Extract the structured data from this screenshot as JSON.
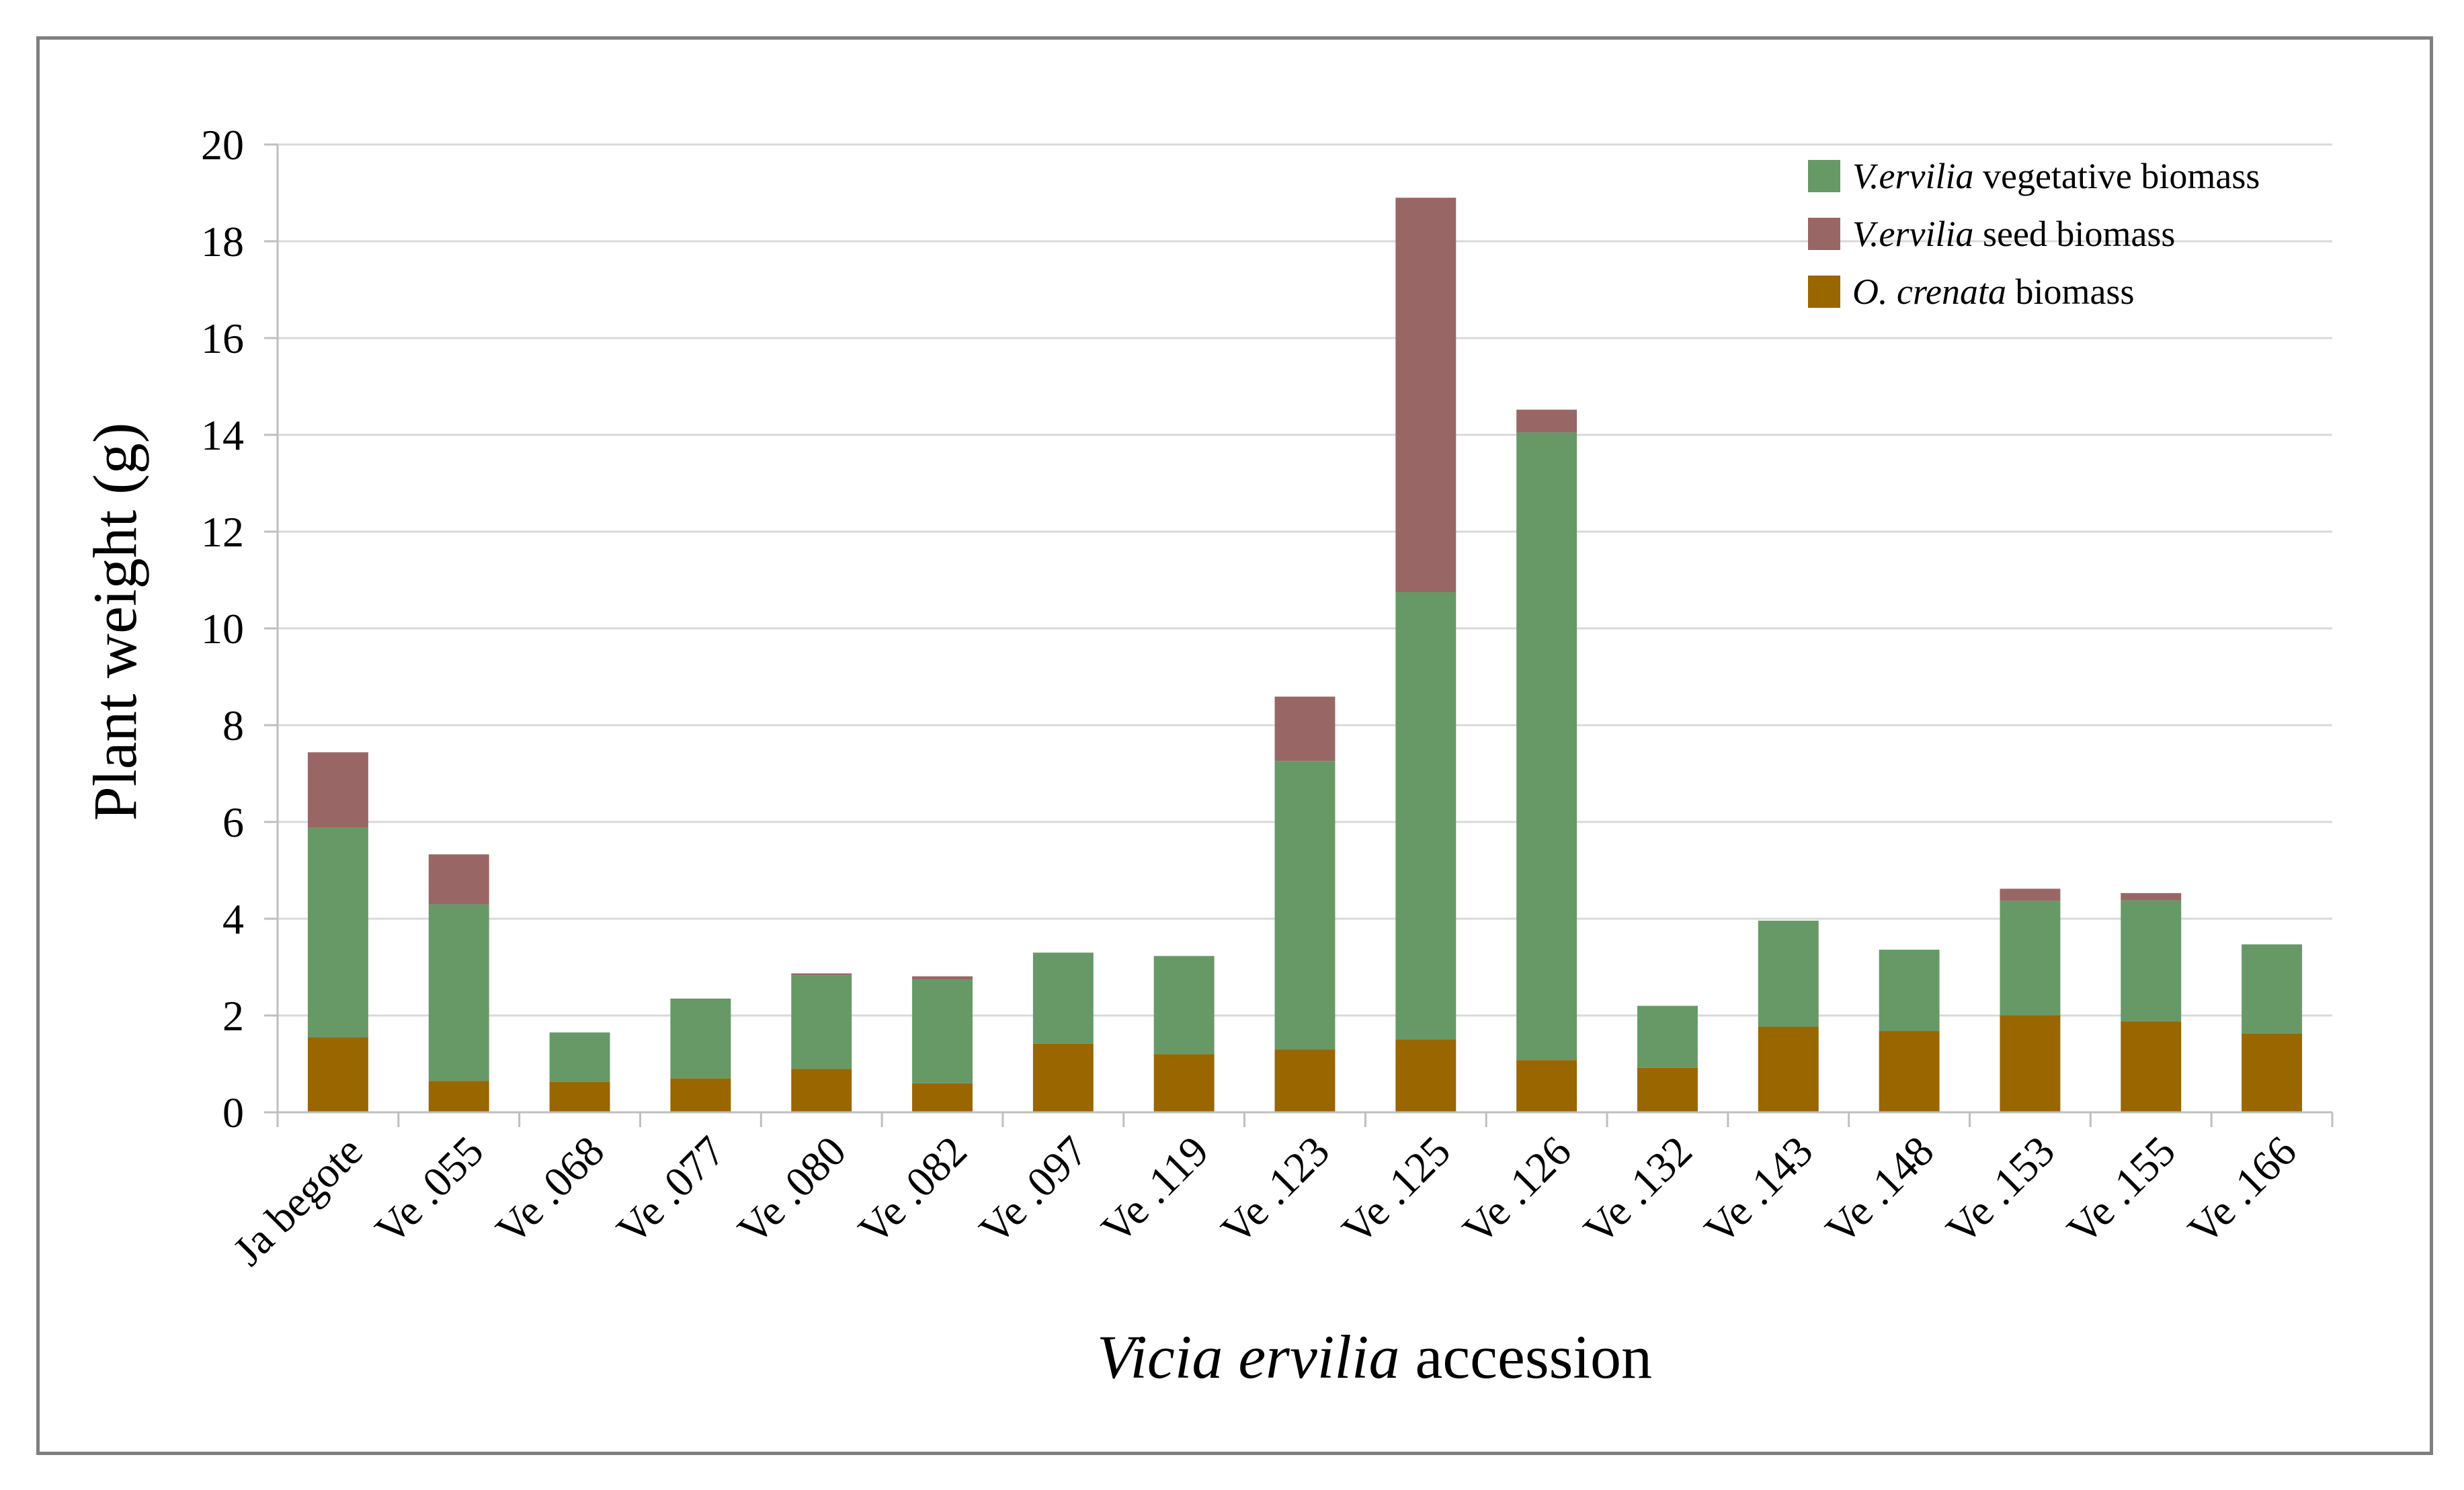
{
  "chart_data": {
    "type": "bar",
    "stacked": true,
    "title": "",
    "xlabel": {
      "italic": "Vicia ervilia",
      "rest": " accession"
    },
    "ylabel": "Plant weight (g)",
    "ylim": [
      0,
      20
    ],
    "yticks": [
      "0",
      "2",
      "4",
      "6",
      "8",
      "10",
      "12",
      "14",
      "16",
      "18",
      "20"
    ],
    "grid": true,
    "legend_position": "top-right",
    "categories": [
      "Ja begote",
      "Ve .055",
      "Ve .068",
      "Ve .077",
      "Ve .080",
      "Ve .082",
      "Ve .097",
      "Ve .119",
      "Ve .123",
      "Ve .125",
      "Ve .126",
      "Ve .132",
      "Ve .143",
      "Ve .148",
      "Ve .153",
      "Ve .155",
      "Ve .166"
    ],
    "series": [
      {
        "key": "crenata",
        "legend_italic": "O. crenata",
        "legend_rest": " biomass",
        "color": "#996600",
        "values": [
          1.55,
          0.65,
          0.63,
          0.7,
          0.9,
          0.6,
          1.42,
          1.2,
          1.3,
          1.5,
          1.08,
          0.92,
          1.77,
          1.68,
          2.0,
          1.88,
          1.63
        ]
      },
      {
        "key": "vegetative",
        "legend_italic": "V.ervilia",
        "legend_rest": " vegetative biomass",
        "color": "#669966",
        "values": [
          4.33,
          3.65,
          1.02,
          1.65,
          1.93,
          2.15,
          1.88,
          2.03,
          5.96,
          9.25,
          12.97,
          1.28,
          2.19,
          1.68,
          2.37,
          2.5,
          1.84
        ]
      },
      {
        "key": "seed",
        "legend_italic": "V.ervilia",
        "legend_rest": " seed biomass",
        "color": "#996666",
        "values": [
          1.56,
          1.03,
          0,
          0,
          0.04,
          0.06,
          0,
          0,
          1.33,
          8.15,
          0.47,
          0,
          0,
          0,
          0.25,
          0.15,
          0
        ]
      }
    ],
    "legend_order": [
      "vegetative",
      "seed",
      "crenata"
    ]
  }
}
